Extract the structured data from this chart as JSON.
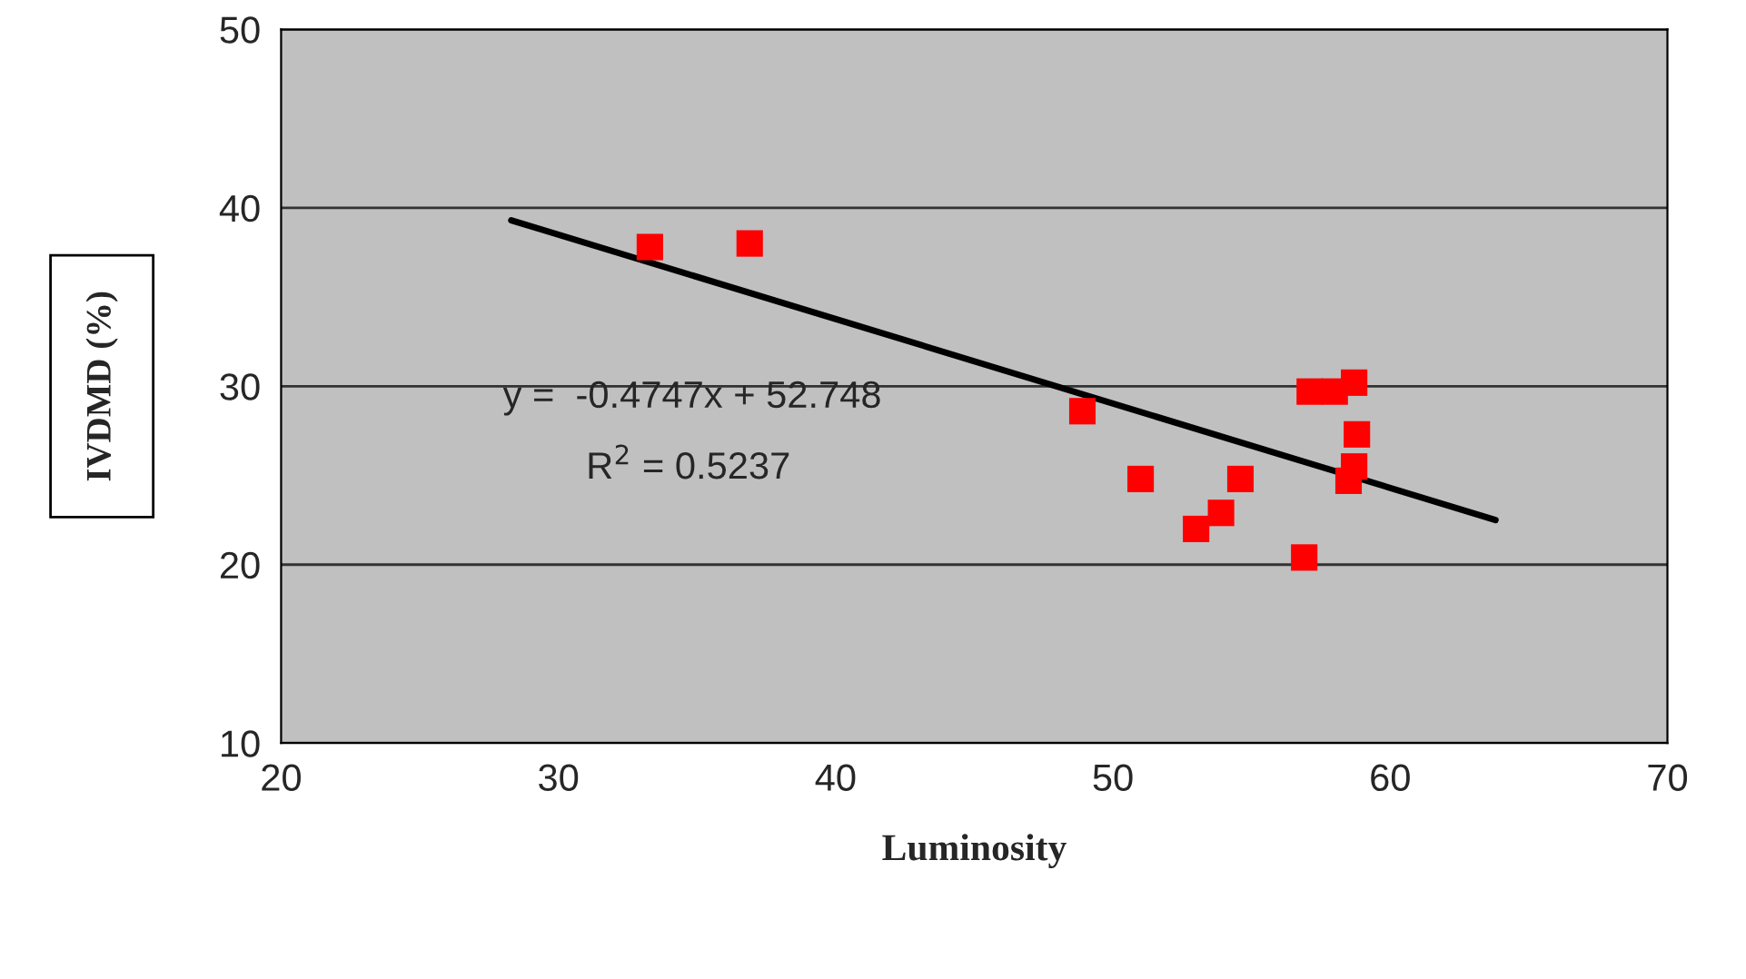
{
  "chart_data": {
    "type": "scatter",
    "xlabel": "Luminosity",
    "ylabel": "IVDMD (%)",
    "xlim": [
      20,
      70
    ],
    "xticks": [
      20,
      30,
      40,
      50,
      60,
      70
    ],
    "ylim": [
      10,
      50
    ],
    "yticks": [
      10,
      20,
      30,
      40,
      50
    ],
    "grid": "y",
    "legend": false,
    "series": [
      {
        "color": "#ff0000",
        "marker": "square",
        "x": [
          33.3,
          36.9,
          48.9,
          51.0,
          54.6,
          53.0,
          53.9,
          56.9,
          57.1,
          58.0,
          58.7,
          58.8,
          58.7,
          58.5
        ],
        "values": [
          37.8,
          38.0,
          28.6,
          24.8,
          24.8,
          22.0,
          22.9,
          20.4,
          29.7,
          29.7,
          30.2,
          27.3,
          25.5,
          24.7
        ]
      },
      {
        "type": "line",
        "color": "#000000",
        "marker": "none",
        "line_style": "solid",
        "x": [
          28.3,
          63.8
        ],
        "values": [
          39.3,
          22.5
        ]
      }
    ],
    "annotations": [
      "y =  -0.4747x + 52.748",
      "R$^{2}$ = 0.5237"
    ]
  }
}
